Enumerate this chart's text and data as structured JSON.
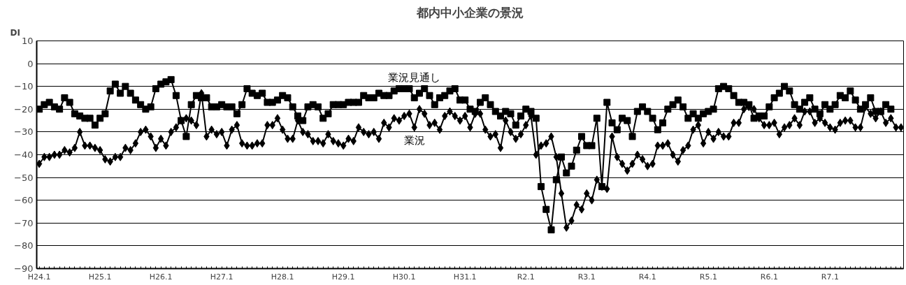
{
  "chart_data": {
    "type": "line",
    "title": "都内中小企業の景況",
    "ylabel": "DI",
    "categories": [
      "H24.1",
      null,
      null,
      null,
      null,
      null,
      null,
      null,
      null,
      null,
      null,
      null,
      "H25.1",
      null,
      null,
      null,
      null,
      null,
      null,
      null,
      null,
      null,
      null,
      null,
      "H26.1",
      null,
      null,
      null,
      null,
      null,
      null,
      null,
      null,
      null,
      null,
      null,
      "H27.1",
      null,
      null,
      null,
      null,
      null,
      null,
      null,
      null,
      null,
      null,
      null,
      "H28.1",
      null,
      null,
      null,
      null,
      null,
      null,
      null,
      null,
      null,
      null,
      null,
      "H29.1",
      null,
      null,
      null,
      null,
      null,
      null,
      null,
      null,
      null,
      null,
      null,
      "H30.1",
      null,
      null,
      null,
      null,
      null,
      null,
      null,
      null,
      null,
      null,
      null,
      "H31.1",
      null,
      null,
      null,
      null,
      null,
      null,
      null,
      null,
      null,
      null,
      null,
      "R2.1",
      null,
      null,
      null,
      null,
      null,
      null,
      null,
      null,
      null,
      null,
      null,
      "R3.1",
      null,
      null,
      null,
      null,
      null,
      null,
      null,
      null,
      null,
      null,
      null,
      "R4.1",
      null,
      null,
      null,
      null,
      null,
      null,
      null,
      null,
      null,
      null,
      null,
      "R5.1",
      null,
      null,
      null,
      null,
      null,
      null,
      null,
      null,
      null,
      null,
      null,
      "R6.1",
      null,
      null,
      null,
      null,
      null,
      null,
      null,
      null,
      null,
      null,
      null,
      "R7.1",
      null,
      null,
      null,
      null,
      null,
      null,
      null,
      null,
      null,
      null,
      null,
      null,
      null,
      null
    ],
    "series": [
      {
        "name": "業況見通し",
        "color": "#000000",
        "marker": "square",
        "values": [
          -20,
          -18,
          -17,
          -19,
          -20,
          -15,
          -17,
          -22,
          -23,
          -24,
          -24,
          -27,
          -24,
          -22,
          -12,
          -9,
          -13,
          -10,
          -13,
          -16,
          -18,
          -20,
          -19,
          -11,
          -9,
          -8,
          -7,
          -14,
          -25,
          -32,
          -18,
          -14,
          -15,
          -15,
          -19,
          -19,
          -18,
          -19,
          -19,
          -22,
          -18,
          -11,
          -13,
          -14,
          -13,
          -17,
          -17,
          -16,
          -14,
          -15,
          -19,
          -23,
          -25,
          -19,
          -18,
          -19,
          -24,
          -22,
          -18,
          -18,
          -18,
          -17,
          -17,
          -17,
          -14,
          -15,
          -15,
          -13,
          -14,
          -14,
          -12,
          -11,
          -11,
          -11,
          -15,
          -13,
          -11,
          -14,
          -18,
          -15,
          -14,
          -12,
          -11,
          -16,
          -16,
          -20,
          -21,
          -17,
          -15,
          -18,
          -21,
          -23,
          -21,
          -22,
          -27,
          -23,
          -20,
          -21,
          -24,
          -54,
          -64,
          -73,
          -51,
          -41,
          -48,
          -45,
          -38,
          -32,
          -36,
          -36,
          -24,
          -54,
          -17,
          -26,
          -29,
          -24,
          -25,
          -32,
          -21,
          -19,
          -21,
          -24,
          -29,
          -26,
          -20,
          -18,
          -16,
          -19,
          -24,
          -22,
          -24,
          -22,
          -21,
          -20,
          -11,
          -10,
          -11,
          -14,
          -17,
          -17,
          -18,
          -24,
          -23,
          -23,
          -19,
          -15,
          -13,
          -10,
          -12,
          -18,
          -20,
          -17,
          -15,
          -20,
          -22,
          -18,
          -20,
          -18,
          -14,
          -15,
          -12,
          -16,
          -20,
          -18,
          -15,
          -21,
          -21,
          -18,
          -20,
          null,
          null
        ]
      },
      {
        "name": "業況",
        "color": "#000000",
        "marker": "diamond",
        "values": [
          -44,
          -41,
          -41,
          -40,
          -40,
          -38,
          -39,
          -37,
          -30,
          -36,
          -36,
          -37,
          -38,
          -42,
          -43,
          -41,
          -41,
          -37,
          -38,
          -35,
          -30,
          -29,
          -32,
          -37,
          -33,
          -36,
          -30,
          -28,
          -25,
          -24,
          -25,
          -27,
          -13,
          -32,
          -29,
          -31,
          -30,
          -36,
          -29,
          -27,
          -35,
          -36,
          -36,
          -35,
          -35,
          -27,
          -27,
          -24,
          -29,
          -33,
          -33,
          -25,
          -30,
          -31,
          -34,
          -34,
          -35,
          -31,
          -34,
          -35,
          -36,
          -33,
          -34,
          -28,
          -30,
          -31,
          -30,
          -33,
          -26,
          -28,
          -24,
          -25,
          -23,
          -22,
          -28,
          -20,
          -22,
          -27,
          -26,
          -29,
          -23,
          -21,
          -23,
          -25,
          -23,
          -28,
          -22,
          -22,
          -29,
          -32,
          -31,
          -37,
          -25,
          -30,
          -33,
          -31,
          -27,
          -23,
          -40,
          -36,
          -35,
          -32,
          -41,
          -57,
          -72,
          -69,
          -62,
          -64,
          -57,
          -60,
          -51,
          -54,
          -55,
          -32,
          -41,
          -44,
          -47,
          -44,
          -40,
          -42,
          -45,
          -44,
          -36,
          -36,
          -35,
          -40,
          -43,
          -38,
          -36,
          -29,
          -27,
          -35,
          -30,
          -33,
          -30,
          -32,
          -32,
          -26,
          -26,
          -20,
          -19,
          -20,
          -24,
          -27,
          -27,
          -26,
          -31,
          -28,
          -27,
          -24,
          -27,
          -21,
          -21,
          -26,
          -24,
          -26,
          -28,
          -29,
          -26,
          -25,
          -25,
          -28,
          -28,
          -19,
          -22,
          -24,
          -21,
          -26,
          -24,
          -28,
          -28
        ]
      }
    ],
    "ylim": [
      -90,
      10
    ],
    "yticks": [
      -90,
      -80,
      -70,
      -60,
      -50,
      -40,
      -30,
      -20,
      -10,
      0,
      10
    ],
    "grid": "y",
    "line_style": "solid"
  }
}
